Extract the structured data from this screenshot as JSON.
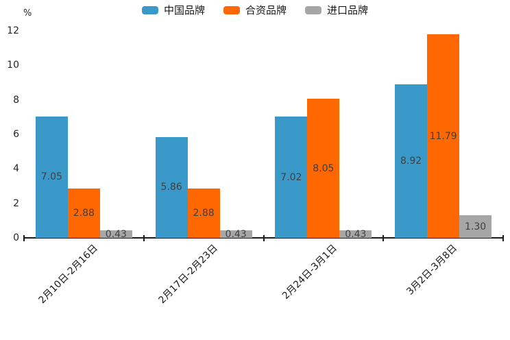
{
  "chart_data": {
    "type": "bar",
    "title": "",
    "unit_label": "%",
    "categories": [
      "2月10日-2月16日",
      "2月17日-2月23日",
      "2月24日-3月1日",
      "3月2日-3月8日"
    ],
    "series": [
      {
        "name": "中国品牌",
        "color": "#3A99C9",
        "values": [
          7.05,
          5.86,
          7.02,
          8.92
        ]
      },
      {
        "name": "合资品牌",
        "color": "#FF6700",
        "values": [
          2.88,
          2.88,
          8.05,
          11.79
        ]
      },
      {
        "name": "进口品牌",
        "color": "#A6A6A6",
        "values": [
          0.43,
          0.43,
          0.43,
          1.3
        ]
      }
    ],
    "value_labels": [
      [
        "7.05",
        "5.86",
        "7.02",
        "8.92"
      ],
      [
        "2.88",
        "2.88",
        "8.05",
        "11.79"
      ],
      [
        "0.43",
        "0.43",
        "0.43",
        "1.30"
      ]
    ],
    "ylim": [
      0,
      12
    ],
    "yticks": [
      0,
      2,
      4,
      6,
      8,
      10,
      12
    ],
    "grid": false,
    "legend_position": "top"
  }
}
